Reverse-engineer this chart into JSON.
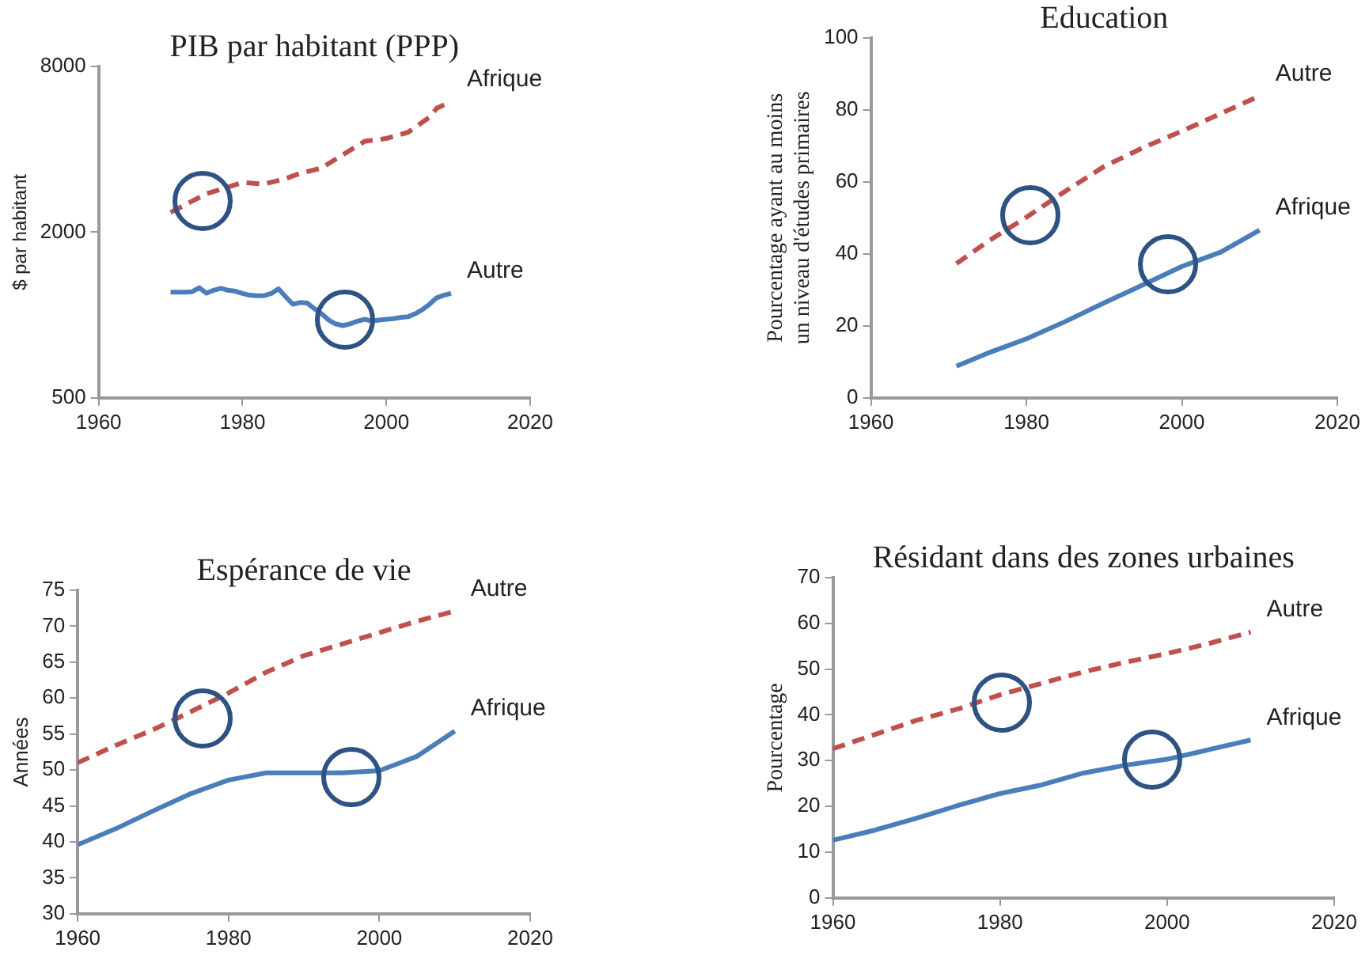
{
  "chart_data": [
    {
      "type": "line",
      "title": "PIB par habitant (PPP)",
      "ylabel": "$ par habitant",
      "log": "y",
      "xlim": [
        1960,
        2020
      ],
      "xticks": [
        1960,
        1980,
        2000,
        2020
      ],
      "ylim": [
        500,
        8000
      ],
      "yticks": [
        500,
        2000,
        8000
      ],
      "legend": false,
      "grid": false,
      "marker": "none",
      "series": [
        {
          "name": "Afrique",
          "color": "#c0504d",
          "line_style": "dashed",
          "x": [
            1970,
            1975,
            1980,
            1983,
            1986,
            1988,
            1991,
            1994,
            1997,
            2000,
            2003,
            2006,
            2007,
            2009
          ],
          "values": [
            2360,
            2760,
            3030,
            2990,
            3130,
            3270,
            3420,
            3830,
            4280,
            4380,
            4610,
            5230,
            5640,
            5950
          ]
        },
        {
          "name": "Autre",
          "color": "#4a7ebb",
          "line_style": "solid",
          "x": [
            1970,
            1971,
            1972,
            1973,
            1974,
            1975,
            1976,
            1977,
            1978,
            1979,
            1980,
            1981,
            1982,
            1983,
            1984,
            1985,
            1986,
            1987,
            1988,
            1989,
            1990,
            1991,
            1992,
            1993,
            1994,
            1995,
            1996,
            1997,
            1998,
            1999,
            2000,
            2001,
            2002,
            2003,
            2004,
            2005,
            2006,
            2007,
            2008,
            2009
          ],
          "values": [
            1210,
            1210,
            1210,
            1215,
            1257,
            1200,
            1230,
            1250,
            1230,
            1220,
            1197,
            1180,
            1175,
            1175,
            1197,
            1245,
            1165,
            1094,
            1110,
            1105,
            1055,
            1010,
            958,
            927,
            915,
            930,
            950,
            965,
            950,
            958,
            965,
            970,
            980,
            985,
            1010,
            1045,
            1094,
            1155,
            1180,
            1197
          ]
        }
      ]
    },
    {
      "type": "line",
      "title": "Education",
      "ylabel": "Pourcentage ayant au moins\nun niveau d'études primaires",
      "xlim": [
        1960,
        2020
      ],
      "xticks": [
        1960,
        1980,
        2000,
        2020
      ],
      "ylim": [
        0,
        100
      ],
      "yticks": [
        0,
        20,
        40,
        60,
        80,
        100
      ],
      "legend": false,
      "grid": false,
      "marker": "none",
      "series": [
        {
          "name": "Autre",
          "color": "#c0504d",
          "line_style": "dashed",
          "x": [
            1971,
            1975,
            1980,
            1985,
            1990,
            1995,
            2000,
            2005,
            2010
          ],
          "values": [
            37.3,
            43.4,
            50.2,
            57.4,
            64.3,
            69.5,
            74.1,
            79,
            83.9
          ]
        },
        {
          "name": "Afrique",
          "color": "#4a7ebb",
          "line_style": "solid",
          "x": [
            1971,
            1975,
            1980,
            1985,
            1990,
            1995,
            2000,
            2005,
            2010
          ],
          "values": [
            8.8,
            12.4,
            16.4,
            21.2,
            26.4,
            31.4,
            36.5,
            40.5,
            46.6
          ]
        }
      ]
    },
    {
      "type": "line",
      "title": "Espérance de vie",
      "ylabel": "Années",
      "xlim": [
        1960,
        2020
      ],
      "xticks": [
        1960,
        1980,
        2000,
        2020
      ],
      "ylim": [
        30,
        75
      ],
      "yticks": [
        30,
        35,
        40,
        45,
        50,
        55,
        60,
        65,
        70,
        75
      ],
      "legend": false,
      "grid": false,
      "marker": "none",
      "series": [
        {
          "name": "Autre",
          "color": "#c0504d",
          "line_style": "dashed",
          "x": [
            1960,
            1965,
            1970,
            1975,
            1980,
            1985,
            1990,
            1995,
            2000,
            2005,
            2010
          ],
          "values": [
            51,
            53.4,
            55.6,
            58.1,
            60.7,
            63.6,
            65.9,
            67.5,
            69.1,
            70.7,
            72.1
          ]
        },
        {
          "name": "Afrique",
          "color": "#4a7ebb",
          "line_style": "solid",
          "x": [
            1960,
            1965,
            1970,
            1975,
            1980,
            1985,
            1990,
            1995,
            2000,
            2005,
            2010
          ],
          "values": [
            39.6,
            41.8,
            44.3,
            46.7,
            48.6,
            49.6,
            49.6,
            49.6,
            49.9,
            51.9,
            55.4
          ]
        }
      ]
    },
    {
      "type": "line",
      "title": "Résidant dans des zones urbaines",
      "ylabel": "Pourcentage",
      "xlim": [
        1960,
        2020
      ],
      "xticks": [
        1960,
        1980,
        2000,
        2020
      ],
      "ylim": [
        0,
        70
      ],
      "yticks": [
        0,
        10,
        20,
        30,
        40,
        50,
        60,
        70
      ],
      "legend": false,
      "grid": false,
      "marker": "none",
      "series": [
        {
          "name": "Autre",
          "color": "#c0504d",
          "line_style": "dashed",
          "x": [
            1960,
            1970,
            1975,
            1980,
            1985,
            1990,
            1995,
            2000,
            2005,
            2010
          ],
          "values": [
            32.6,
            38.8,
            41.3,
            44.4,
            46.9,
            49.4,
            51.5,
            53.4,
            55.6,
            58.1
          ]
        },
        {
          "name": "Afrique",
          "color": "#4a7ebb",
          "line_style": "solid",
          "x": [
            1960,
            1965,
            1970,
            1975,
            1980,
            1985,
            1990,
            1995,
            2000,
            2005,
            2010
          ],
          "values": [
            12.6,
            14.8,
            17.4,
            20.2,
            22.8,
            24.7,
            27.3,
            29,
            30.3,
            32.4,
            34.5
          ]
        }
      ]
    }
  ]
}
